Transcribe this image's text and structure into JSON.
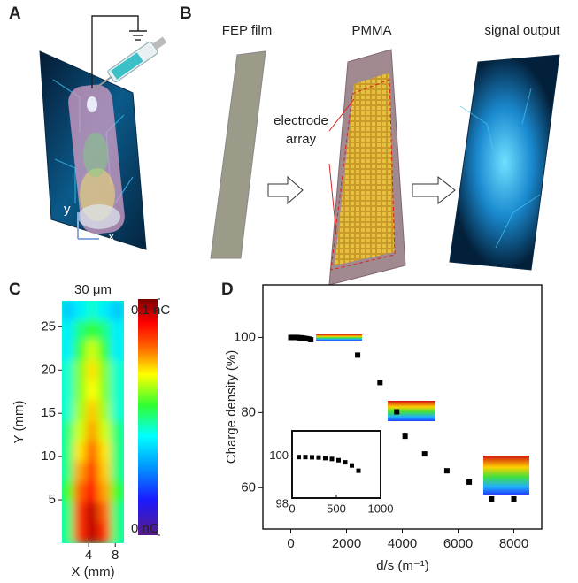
{
  "panels": {
    "a": {
      "label": "A",
      "axis_y": "y",
      "axis_x": "x"
    },
    "b": {
      "label": "B",
      "film": "FEP film",
      "pmma": "PMMA",
      "output": "signal output",
      "electrode": "electrode",
      "array": "array"
    },
    "c": {
      "label": "C"
    },
    "d": {
      "label": "D"
    }
  },
  "chart_data": [
    {
      "type": "heatmap",
      "title": "30 μm",
      "x_label": "X (mm)",
      "y_label": "Y (mm)",
      "xlim": [
        0,
        9.3
      ],
      "ylim": [
        0,
        28
      ],
      "xticks": [
        4,
        8
      ],
      "yticks": [
        5,
        10,
        15,
        20,
        25
      ],
      "values": [
        [
          0.035,
          0.04,
          0.045,
          0.04,
          0.035
        ],
        [
          0.04,
          0.05,
          0.055,
          0.05,
          0.04
        ],
        [
          0.04,
          0.055,
          0.065,
          0.055,
          0.04
        ],
        [
          0.045,
          0.06,
          0.07,
          0.06,
          0.045
        ],
        [
          0.045,
          0.06,
          0.068,
          0.06,
          0.045
        ],
        [
          0.045,
          0.062,
          0.072,
          0.062,
          0.045
        ],
        [
          0.05,
          0.065,
          0.075,
          0.065,
          0.05
        ],
        [
          0.05,
          0.07,
          0.08,
          0.07,
          0.05
        ],
        [
          0.05,
          0.075,
          0.085,
          0.072,
          0.05
        ],
        [
          0.055,
          0.08,
          0.09,
          0.075,
          0.055
        ],
        [
          0.05,
          0.085,
          0.095,
          0.08,
          0.05
        ],
        [
          0.05,
          0.085,
          0.095,
          0.085,
          0.05
        ]
      ],
      "colorbar": {
        "lim": [
          0,
          0.1
        ],
        "ticks": [
          {
            "value": 0.1,
            "label": "0.1 nC"
          },
          {
            "value": 0,
            "label": "0 nC"
          }
        ]
      }
    },
    {
      "type": "scatter",
      "x_label": "d/s (m⁻¹)",
      "y_label": "Charge density (%)",
      "color": "#000000",
      "x": [
        0,
        80,
        160,
        240,
        320,
        400,
        480,
        560,
        640,
        720,
        2400,
        3200,
        3800,
        4100,
        4800,
        5600,
        6400,
        7200,
        8000
      ],
      "values": [
        100,
        100,
        100,
        100,
        99.9,
        99.9,
        99.8,
        99.7,
        99.6,
        99.4,
        95.3,
        88,
        80.2,
        73.7,
        69,
        64.5,
        61.5,
        57,
        57
      ],
      "xlim": [
        -1000,
        9000
      ],
      "ylim": [
        49,
        114
      ],
      "xticks": [
        0,
        2000,
        4000,
        6000,
        8000
      ],
      "yticks": [
        60,
        80,
        100
      ],
      "inset": {
        "x": [
          75,
          150,
          225,
          300,
          375,
          450,
          525,
          600,
          675,
          750
        ],
        "values": [
          99.95,
          99.95,
          99.94,
          99.93,
          99.9,
          99.86,
          99.8,
          99.7,
          99.55,
          99.3
        ],
        "xlim": [
          0,
          1000
        ],
        "ylim": [
          98,
          101.2
        ],
        "xticks": [
          0,
          500,
          1000
        ],
        "yticks": [
          98,
          100
        ]
      }
    }
  ]
}
